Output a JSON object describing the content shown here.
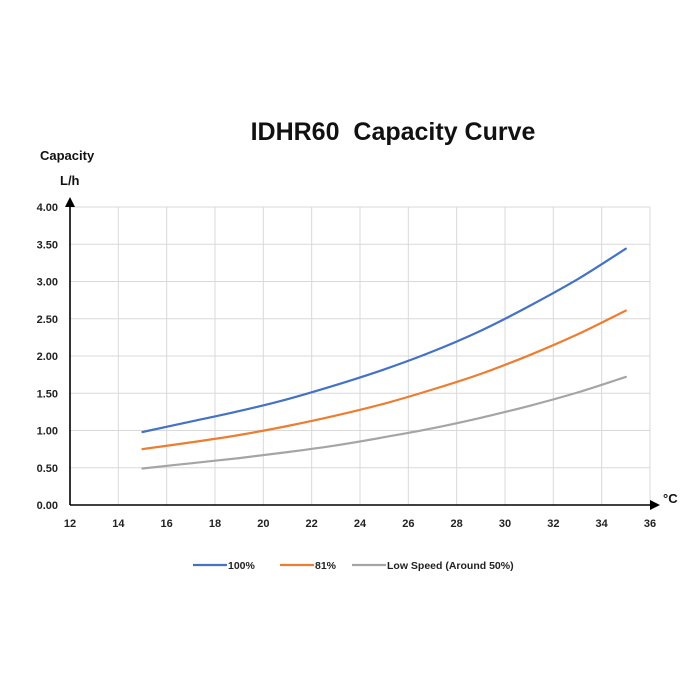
{
  "chart_data": {
    "type": "line",
    "title": "IDHR60  Capacity Curve",
    "ylabel": "Capacity",
    "yunit": "L/h",
    "xunit": "°C",
    "xlim": [
      12,
      36
    ],
    "ylim": [
      0,
      4
    ],
    "xticks": [
      "12",
      "14",
      "16",
      "18",
      "20",
      "22",
      "24",
      "26",
      "28",
      "30",
      "32",
      "34",
      "36"
    ],
    "yticks": [
      "0.00",
      "0.50",
      "1.00",
      "1.50",
      "2.00",
      "2.50",
      "3.00",
      "3.50",
      "4.00"
    ],
    "grid": true,
    "legend_position": "bottom",
    "x": [
      15,
      17,
      19,
      21,
      23,
      25,
      27,
      29,
      31,
      33,
      35
    ],
    "series": [
      {
        "name": "100%",
        "color": "#4472c4",
        "values": [
          0.98,
          1.12,
          1.26,
          1.42,
          1.61,
          1.82,
          2.06,
          2.34,
          2.67,
          3.03,
          3.44
        ]
      },
      {
        "name": "81%",
        "color": "#ed7d31",
        "values": [
          0.75,
          0.84,
          0.94,
          1.06,
          1.2,
          1.36,
          1.55,
          1.76,
          2.01,
          2.29,
          2.61
        ]
      },
      {
        "name": "Low Speed (Around 50%)",
        "color": "#a5a5a5",
        "values": [
          0.49,
          0.56,
          0.63,
          0.71,
          0.8,
          0.91,
          1.03,
          1.17,
          1.33,
          1.51,
          1.72
        ]
      }
    ]
  }
}
